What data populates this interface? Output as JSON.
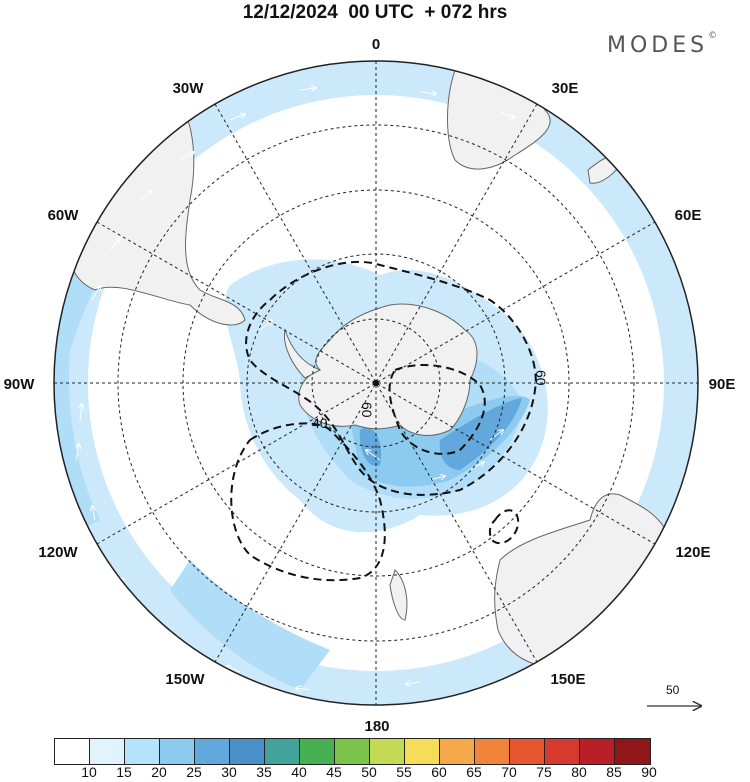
{
  "title": "12/12/2024  00 UTC  + 072 hrs",
  "brand": "MODES",
  "brand_mark": "©",
  "longitude_labels": [
    "0",
    "30E",
    "60E",
    "90E",
    "120E",
    "150E",
    "180",
    "150W",
    "120W",
    "90W",
    "60W",
    "30W"
  ],
  "contour_labels": [
    "60",
    "60",
    "40"
  ],
  "reference_vector": {
    "label": "50"
  },
  "colorbar": {
    "labels": [
      "10",
      "15",
      "20",
      "25",
      "30",
      "35",
      "40",
      "45",
      "50",
      "55",
      "60",
      "65",
      "70",
      "75",
      "80",
      "85",
      "90"
    ],
    "colors": [
      "#ffffff",
      "#e1f4fe",
      "#b4e3fb",
      "#8ccaf0",
      "#62a8dc",
      "#4a8fc8",
      "#41a39c",
      "#47b050",
      "#7cc34b",
      "#c4da55",
      "#f5dd5a",
      "#f5a84a",
      "#f0843a",
      "#e6562f",
      "#d63a2e",
      "#b81f26",
      "#8f1719"
    ]
  },
  "colors": {
    "land": "#f1f1f1",
    "coast": "#666666",
    "graticule": "#222222",
    "contour": "#111111"
  },
  "icons": {
    "north_pole": "pole-dot-icon",
    "arrows": "wind-arrow-icon"
  }
}
